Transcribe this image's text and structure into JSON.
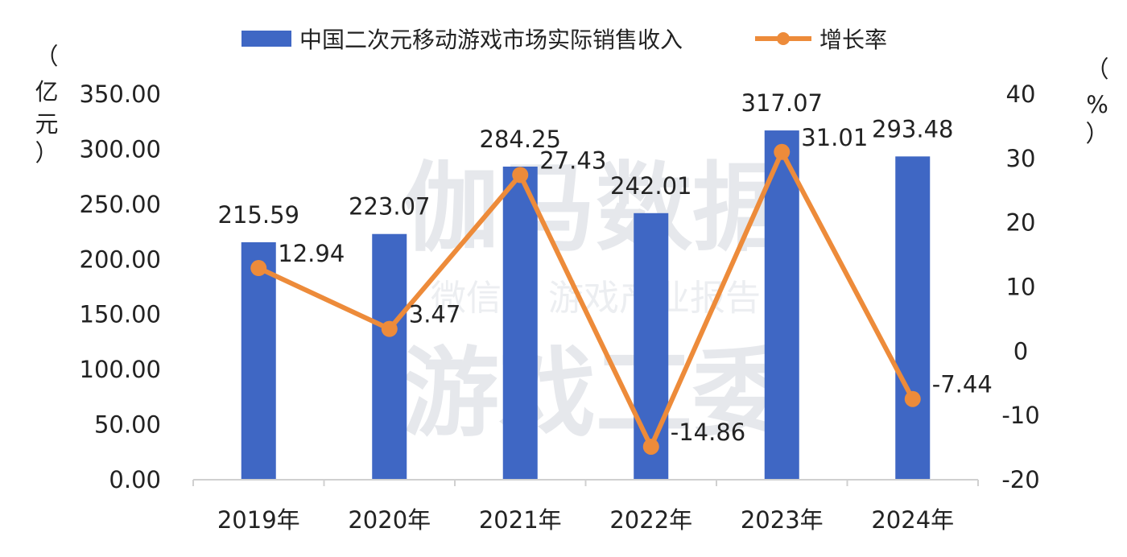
{
  "chart_data": {
    "type": "bar",
    "categories": [
      "2019年",
      "2020年",
      "2021年",
      "2022年",
      "2023年",
      "2024年"
    ],
    "series": [
      {
        "name": "中国二次元移动游戏市场实际销售收入",
        "type": "bar",
        "axis": "left",
        "values": [
          215.59,
          223.07,
          284.25,
          242.01,
          317.07,
          293.48
        ],
        "labels": [
          "215.59",
          "223.07",
          "284.25",
          "242.01",
          "317.07",
          "293.48"
        ]
      },
      {
        "name": "增长率",
        "type": "line",
        "axis": "right",
        "values": [
          12.94,
          3.47,
          27.43,
          -14.86,
          31.01,
          -7.44
        ],
        "labels": [
          "12.94",
          "3.47",
          "27.43",
          "-14.86",
          "31.01",
          "-7.44"
        ]
      }
    ],
    "y_left": {
      "unit_label": [
        "（",
        "亿",
        "元",
        "）"
      ],
      "ylim": [
        0,
        350
      ],
      "ticks": [
        "0.00",
        "50.00",
        "100.00",
        "150.00",
        "200.00",
        "250.00",
        "300.00",
        "350.00"
      ]
    },
    "y_right": {
      "unit_label": [
        "（",
        "%",
        "）"
      ],
      "ylim": [
        -20,
        40
      ],
      "ticks": [
        "-20",
        "-10",
        "0",
        "10",
        "20",
        "30",
        "40"
      ]
    },
    "legend_position": "top-center",
    "grid": false,
    "bar_color": "#3f67c4",
    "line_color": "#ed8b3a"
  },
  "watermark": {
    "line1": "伽马数据",
    "line2": "微信号  游戏产业报告",
    "line3": "游戏工委"
  }
}
